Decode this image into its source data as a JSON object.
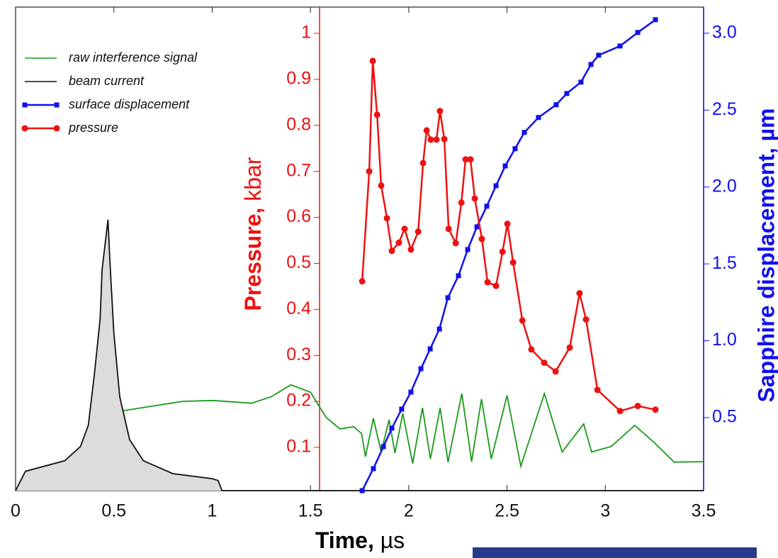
{
  "chart_data": {
    "type": "line",
    "xlabel": [
      "Time,",
      " µs"
    ],
    "ylabel": [
      "Pressure,",
      " kbar"
    ],
    "y2label": "Sapphire displacement, µm",
    "xlim": [
      0,
      3.5
    ],
    "xticks": [
      0,
      0.5,
      1,
      1.5,
      2,
      2.5,
      3,
      3.5
    ],
    "ylim": [
      0.006,
      1.057
    ],
    "yticks": [
      0.1,
      0.2,
      0.3,
      0.4,
      0.5,
      0.6,
      0.7,
      0.8,
      0.9,
      1
    ],
    "y2lim": [
      0.025,
      3.17
    ],
    "y2ticks": [
      0.5,
      {
        "value": 1,
        "label": "1.0"
      },
      1.5,
      {
        "value": 2,
        "label": "2.0"
      },
      2.5,
      {
        "value": 3,
        "label": "3.0"
      }
    ],
    "legend": "upper left",
    "series": [
      {
        "name": "raw interference signal",
        "color": "#1a9a1a",
        "x": [
          0.55,
          0.7,
          0.85,
          1.0,
          1.2,
          1.3,
          1.4,
          1.5,
          1.58,
          1.65,
          1.72,
          1.76,
          1.78,
          1.82,
          1.86,
          1.9,
          1.93,
          1.97,
          2.02,
          2.07,
          2.11,
          2.16,
          2.2,
          2.27,
          2.32,
          2.37,
          2.42,
          2.5,
          2.57,
          2.69,
          2.78,
          2.89,
          2.93,
          3.03,
          3.15,
          3.25,
          3.35,
          3.5
        ],
        "values": [
          0.18,
          0.19,
          0.2,
          0.202,
          0.196,
          0.21,
          0.236,
          0.22,
          0.165,
          0.14,
          0.145,
          0.13,
          0.08,
          0.163,
          0.09,
          0.16,
          0.088,
          0.174,
          0.065,
          0.186,
          0.075,
          0.186,
          0.068,
          0.217,
          0.069,
          0.205,
          0.075,
          0.213,
          0.059,
          0.217,
          0.09,
          0.151,
          0.09,
          0.102,
          0.148,
          0.11,
          0.068,
          0.069
        ]
      },
      {
        "name": "beam current",
        "color": "#111111",
        "x": [
          0,
          0.05,
          0.25,
          0.33,
          0.37,
          0.4,
          0.43,
          0.44,
          0.47,
          0.48,
          0.5,
          0.53,
          0.58,
          0.65,
          0.8,
          1.0,
          1.03,
          1.05,
          1.5,
          2.0,
          2.5,
          3.0,
          3.5
        ],
        "values": [
          0.006,
          0.048,
          0.071,
          0.102,
          0.148,
          0.256,
          0.379,
          0.487,
          0.595,
          0.502,
          0.348,
          0.21,
          0.117,
          0.071,
          0.043,
          0.032,
          0.028,
          0.006,
          0.006,
          0.006,
          0.006,
          0.006,
          0.006
        ]
      },
      {
        "name": "surface displacement",
        "color": "#1010ee",
        "axis": "y2",
        "marker": "square",
        "x": [
          1.763,
          1.82,
          1.871,
          1.914,
          1.964,
          2.011,
          2.062,
          2.109,
          2.156,
          2.199,
          2.253,
          2.3,
          2.347,
          2.397,
          2.444,
          2.491,
          2.541,
          2.588,
          2.66,
          2.75,
          2.804,
          2.876,
          2.927,
          2.966,
          3.075,
          3.165,
          3.255
        ],
        "values": [
          0.025,
          0.168,
          0.311,
          0.431,
          0.555,
          0.666,
          0.818,
          0.947,
          1.076,
          1.28,
          1.423,
          1.593,
          1.741,
          1.875,
          2.008,
          2.137,
          2.249,
          2.355,
          2.452,
          2.535,
          2.608,
          2.682,
          2.797,
          2.857,
          2.917,
          3.005,
          3.088
        ]
      },
      {
        "name": "pressure",
        "color": "#ee1111",
        "marker": "circle",
        "x": [
          1.763,
          1.799,
          1.817,
          1.839,
          1.86,
          1.889,
          1.914,
          1.95,
          1.979,
          2.011,
          2.048,
          2.073,
          2.091,
          2.112,
          2.141,
          2.159,
          2.181,
          2.203,
          2.239,
          2.268,
          2.289,
          2.314,
          2.336,
          2.372,
          2.401,
          2.444,
          2.477,
          2.502,
          2.531,
          2.578,
          2.624,
          2.689,
          2.747,
          2.819,
          2.869,
          2.902,
          2.96,
          3.075,
          3.165,
          3.255
        ],
        "values": [
          0.461,
          0.7,
          0.94,
          0.823,
          0.669,
          0.598,
          0.527,
          0.545,
          0.575,
          0.53,
          0.569,
          0.718,
          0.789,
          0.769,
          0.769,
          0.831,
          0.77,
          0.575,
          0.544,
          0.632,
          0.726,
          0.726,
          0.641,
          0.553,
          0.459,
          0.451,
          0.525,
          0.586,
          0.502,
          0.376,
          0.313,
          0.284,
          0.265,
          0.317,
          0.435,
          0.378,
          0.225,
          0.179,
          0.19,
          0.182
        ]
      }
    ]
  }
}
